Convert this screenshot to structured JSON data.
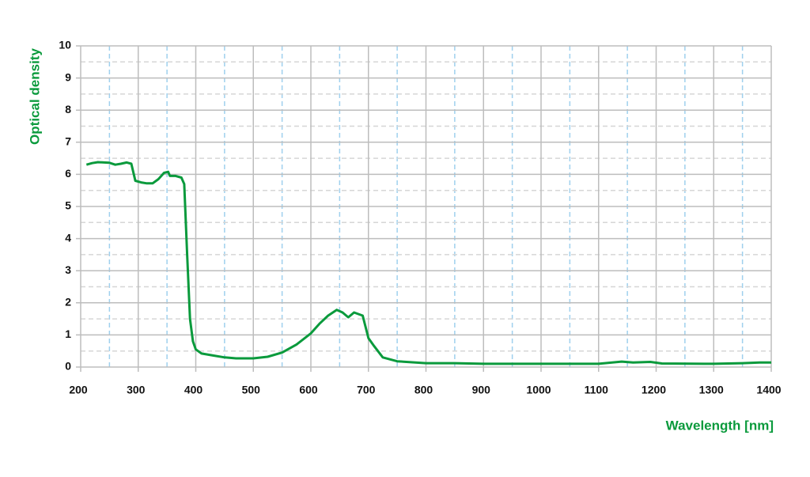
{
  "chart_data": {
    "type": "line",
    "x_label": "Wavelength [nm]",
    "y_label": "Optical density",
    "xlim": [
      200,
      1400
    ],
    "ylim": [
      0,
      10
    ],
    "xticks": [
      200,
      300,
      400,
      500,
      600,
      700,
      800,
      900,
      1000,
      1100,
      1200,
      1300,
      1400
    ],
    "yticks": [
      0,
      1,
      2,
      3,
      4,
      5,
      6,
      7,
      8,
      9,
      10
    ],
    "x_minor_ticks": [
      250,
      350,
      450,
      550,
      650,
      750,
      850,
      950,
      1050,
      1150,
      1250,
      1350
    ],
    "y_minor_ticks": [
      0.5,
      1.5,
      2.5,
      3.5,
      4.5,
      5.5,
      6.5,
      7.5,
      8.5,
      9.5
    ],
    "grid": true,
    "grid_color": "#bdbdbd",
    "x_minor_grid_color": "#9fd0ee",
    "y_minor_grid_color": "#d6d6d6",
    "series": [
      {
        "color": "#0a9a3c",
        "x": [
          210,
          220,
          230,
          250,
          260,
          270,
          280,
          288,
          295,
          305,
          315,
          325,
          335,
          345,
          352,
          355,
          365,
          375,
          380,
          385,
          390,
          395,
          400,
          410,
          430,
          450,
          470,
          500,
          525,
          550,
          575,
          600,
          615,
          630,
          645,
          655,
          665,
          675,
          690,
          700,
          710,
          725,
          750,
          800,
          850,
          900,
          1000,
          1100,
          1140,
          1160,
          1190,
          1210,
          1300,
          1350,
          1380,
          1400
        ],
        "values": [
          6.3,
          6.35,
          6.38,
          6.36,
          6.3,
          6.33,
          6.37,
          6.33,
          5.8,
          5.75,
          5.72,
          5.72,
          5.85,
          6.05,
          6.08,
          5.95,
          5.95,
          5.9,
          5.7,
          3.5,
          1.5,
          0.8,
          0.55,
          0.42,
          0.36,
          0.3,
          0.27,
          0.27,
          0.32,
          0.45,
          0.7,
          1.05,
          1.35,
          1.6,
          1.78,
          1.7,
          1.55,
          1.7,
          1.6,
          0.9,
          0.65,
          0.3,
          0.18,
          0.12,
          0.12,
          0.1,
          0.1,
          0.1,
          0.17,
          0.14,
          0.16,
          0.11,
          0.1,
          0.12,
          0.14,
          0.14
        ]
      }
    ]
  }
}
